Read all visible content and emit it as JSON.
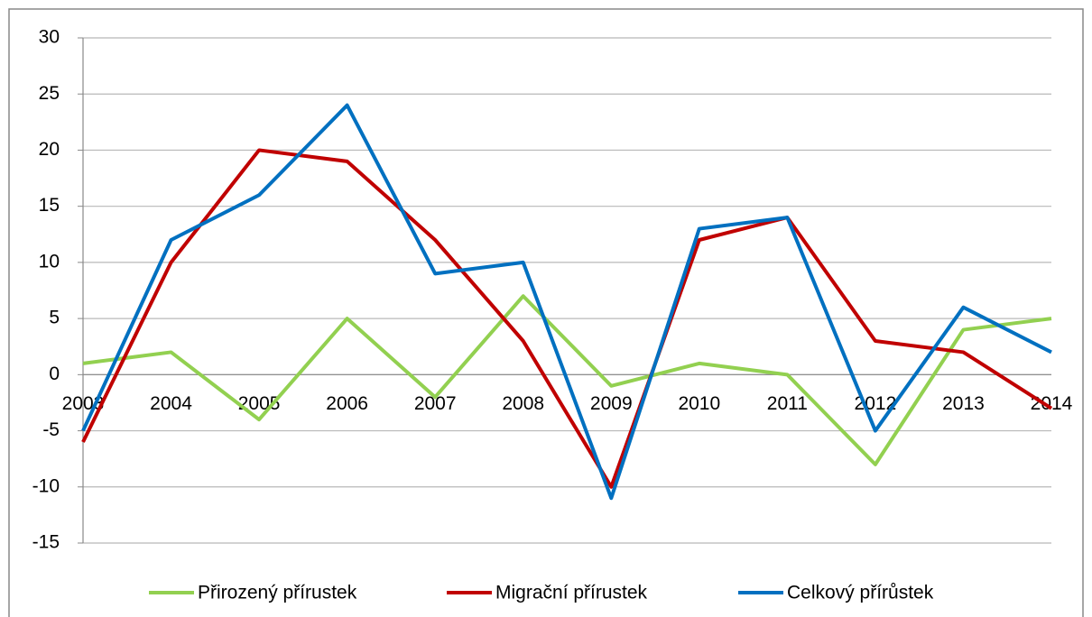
{
  "chart_data": {
    "type": "line",
    "categories": [
      "2003",
      "2004",
      "2005",
      "2006",
      "2007",
      "2008",
      "2009",
      "2010",
      "2011",
      "2012",
      "2013",
      "2014"
    ],
    "series": [
      {
        "name": "Přirozený přírustek",
        "color": "#92d050",
        "values": [
          1,
          2,
          -4,
          5,
          -2,
          7,
          -1,
          1,
          0,
          -8,
          4,
          5
        ]
      },
      {
        "name": "Migrační přírustek",
        "color": "#c00000",
        "values": [
          -6,
          10,
          20,
          19,
          12,
          3,
          -10,
          12,
          14,
          3,
          2,
          -3
        ]
      },
      {
        "name": "Celkový přírůstek",
        "color": "#0070c0",
        "values": [
          -5,
          12,
          16,
          24,
          9,
          10,
          -11,
          13,
          14,
          -5,
          6,
          2
        ]
      }
    ],
    "ylim": [
      -15,
      30
    ],
    "yticks": [
      -15,
      -10,
      -5,
      0,
      5,
      10,
      15,
      20,
      25,
      30
    ],
    "grid": true,
    "legend": "bottom"
  }
}
